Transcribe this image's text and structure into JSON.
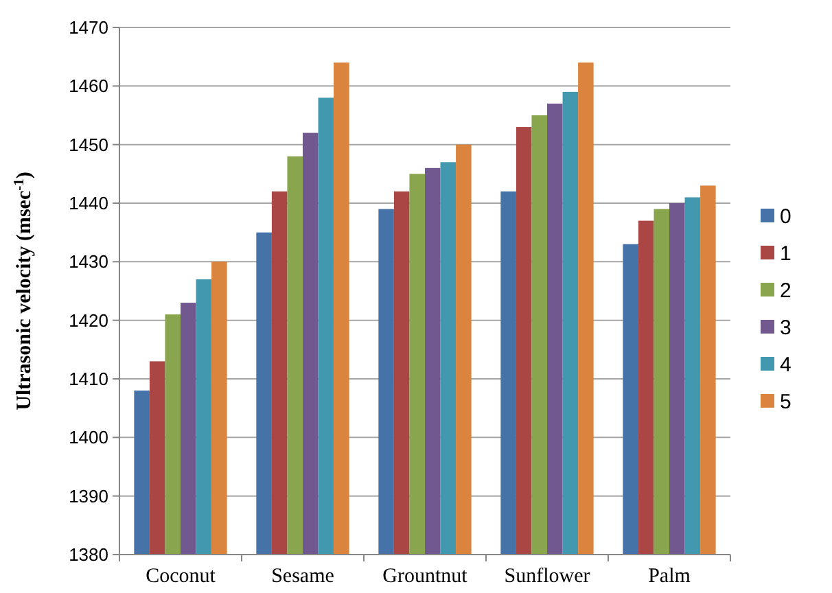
{
  "chart_data": {
    "type": "bar",
    "ylabel": "Ultrasonic velocity (msec$^{-1}$)",
    "categories": [
      "Coconut",
      "Sesame",
      "Grountnut",
      "Sunflower",
      "Palm"
    ],
    "series": [
      {
        "name": "0",
        "color": "#4572a7",
        "values": [
          1408,
          1435,
          1439,
          1442,
          1433
        ]
      },
      {
        "name": "1",
        "color": "#aa4643",
        "values": [
          1413,
          1442,
          1442,
          1453,
          1437
        ]
      },
      {
        "name": "2",
        "color": "#89a54e",
        "values": [
          1421,
          1448,
          1445,
          1455,
          1439
        ]
      },
      {
        "name": "3",
        "color": "#71588f",
        "values": [
          1423,
          1452,
          1446,
          1457,
          1440
        ]
      },
      {
        "name": "4",
        "color": "#4198af",
        "values": [
          1427,
          1458,
          1447,
          1459,
          1441
        ]
      },
      {
        "name": "5",
        "color": "#db843d",
        "values": [
          1430,
          1464,
          1450,
          1464,
          1443
        ]
      }
    ],
    "ylim": [
      1380,
      1470
    ],
    "yticks": [
      1380,
      1390,
      1400,
      1410,
      1420,
      1430,
      1440,
      1450,
      1460,
      1470
    ],
    "grid": "y",
    "legend": "right"
  }
}
